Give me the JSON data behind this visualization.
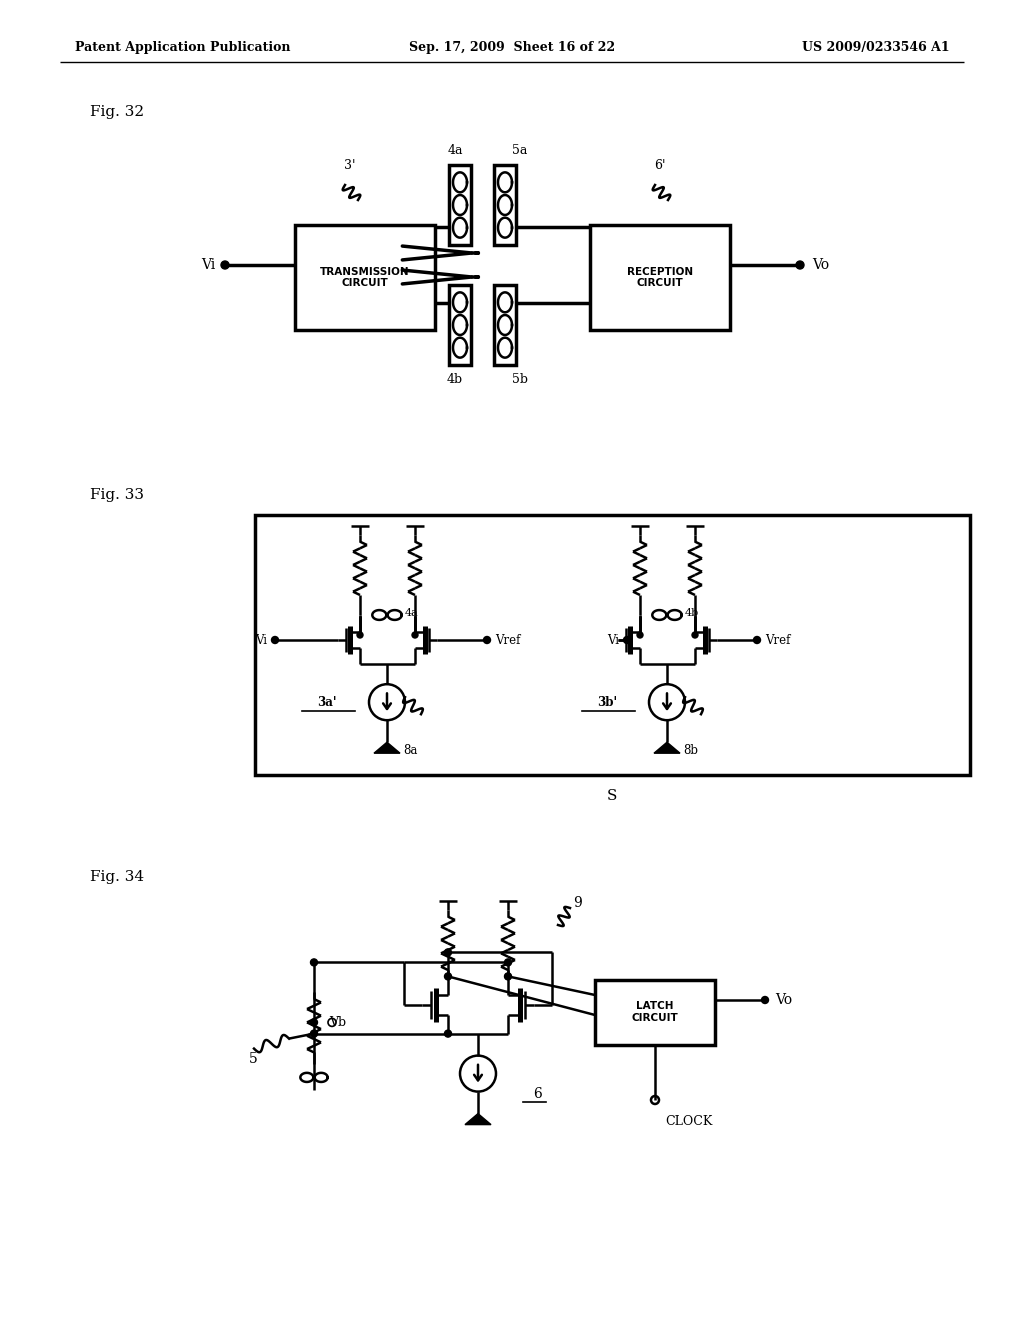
{
  "bg_color": "#ffffff",
  "header_left": "Patent Application Publication",
  "header_mid": "Sep. 17, 2009  Sheet 16 of 22",
  "header_right": "US 2009/0233546 A1",
  "fig32_label": "Fig. 32",
  "fig33_label": "Fig. 33",
  "fig34_label": "Fig. 34",
  "fig32_vi": "Vi",
  "fig32_vo": "Vo",
  "fig32_trans": "TRANSMISSION\nCIRCUIT",
  "fig32_rec": "RECEPTION\nCIRCUIT",
  "fig32_3p": "3'",
  "fig32_4a": "4a",
  "fig32_4b": "4b",
  "fig32_5a": "5a",
  "fig32_5b": "5b",
  "fig32_6p": "6'",
  "fig33_vi_l": "Vi",
  "fig33_vi_r": "Vi",
  "fig33_vref_l": "Vref",
  "fig33_vref_r": "Vref",
  "fig33_4a": "4a",
  "fig33_4b": "4b",
  "fig33_3ap": "3a'",
  "fig33_3bp": "3b'",
  "fig33_8a": "8a",
  "fig33_8b": "8b",
  "fig33_s": "S",
  "fig34_9": "9",
  "fig34_vb": "Vb",
  "fig34_5": "5",
  "fig34_6": "6",
  "fig34_vo": "Vo",
  "fig34_clock": "CLOCK",
  "fig34_latch": "LATCH\nCIRCUIT"
}
